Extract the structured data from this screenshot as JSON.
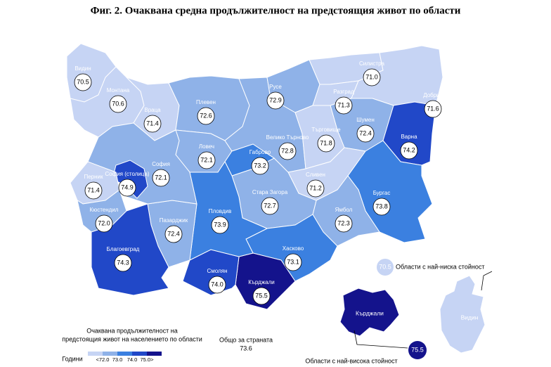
{
  "title": "Фиг. 2. Очаквана средна продължителност на предстоящия живот по области",
  "map": {
    "regions": [
      "Видин",
      "Монтана",
      "Враца",
      "Плевен",
      "Ловеч",
      "Велико Търново",
      "Русе",
      "Силистра",
      "Разград",
      "Добрич",
      "Шумен",
      "Търговище",
      "Варна",
      "Бургас",
      "Сливен",
      "Ямбол",
      "Стара Загора",
      "Габрово",
      "Хасково",
      "Кърджали",
      "Смолян",
      "Пловдив",
      "Пазарджик",
      "София",
      "София (столица)",
      "Перник",
      "Кюстендил",
      "Благоевград"
    ],
    "values": [
      70.5,
      70.6,
      71.4,
      72.6,
      72.1,
      72.8,
      72.9,
      71.0,
      71.3,
      71.6,
      72.4,
      71.8,
      74.2,
      73.8,
      71.2,
      72.3,
      72.7,
      73.2,
      73.1,
      75.5,
      74.0,
      73.9,
      72.4,
      72.1,
      74.9,
      71.4,
      72.0,
      74.3
    ],
    "value_labels": [
      "70.5",
      "70.6",
      "71.4",
      "72.6",
      "72.1",
      "72.8",
      "72.9",
      "71.0",
      "71.3",
      "71.6",
      "72.4",
      "71.8",
      "74.2",
      "73.8",
      "71.2",
      "72.3",
      "72.7",
      "73.2",
      "73.1",
      "75.5",
      "74.0",
      "73.9",
      "72.4",
      "72.1",
      "74.9",
      "71.4",
      "72.0",
      "74.3"
    ],
    "legend": {
      "title": [
        "Очаквана продължителност на",
        "предстоящия живот на населението по области"
      ],
      "unit": "Години",
      "ticks": [
        {
          "value": 72,
          "label": "<72.0"
        },
        {
          "value": 73,
          "label": "73.0"
        },
        {
          "value": 74,
          "label": "74.0"
        },
        {
          "value": 75,
          "label": "75.0>"
        }
      ],
      "colors": [
        "#c6d4f4",
        "#8fb2e8",
        "#3b80e0",
        "#2148c8",
        "#14138c"
      ]
    },
    "total": {
      "label": "Общо за страната",
      "value": 73.6
    }
  },
  "insets": {
    "low": {
      "label": "Области с най-ниска стойност",
      "region": "Видин",
      "value": 70.5
    },
    "high": {
      "label": "Области с най-висока стойност",
      "region": "Кърджали",
      "value": 75.5
    }
  }
}
